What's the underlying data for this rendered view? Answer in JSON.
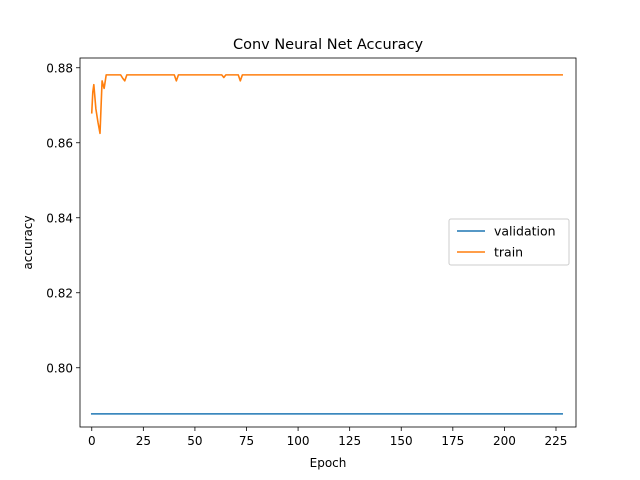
{
  "chart_data": {
    "type": "line",
    "title": "Conv Neural Net Accuracy",
    "xlabel": "Epoch",
    "ylabel": "accuracy",
    "xlim": [
      -5.7,
      234.7
    ],
    "ylim": [
      0.7842,
      0.8826
    ],
    "xticks": [
      0,
      25,
      50,
      75,
      100,
      125,
      150,
      175,
      200,
      225
    ],
    "yticks": [
      0.8,
      0.82,
      0.84,
      0.86,
      0.88
    ],
    "ytick_labels": [
      "0.80",
      "0.82",
      "0.84",
      "0.86",
      "0.88"
    ],
    "grid": false,
    "legend_position": "center-right",
    "series": [
      {
        "name": "validation",
        "color": "#1f77b4",
        "x": [
          0,
          228
        ],
        "y": [
          0.7877,
          0.7877
        ]
      },
      {
        "name": "train",
        "color": "#ff7f0e",
        "x": [
          0,
          0.5,
          1,
          2,
          3,
          4,
          5,
          6,
          7,
          8,
          14,
          15,
          16,
          17,
          40,
          41,
          42,
          43,
          63,
          64,
          65,
          71,
          72,
          73,
          74,
          228
        ],
        "y": [
          0.868,
          0.8735,
          0.8755,
          0.869,
          0.8655,
          0.8625,
          0.8765,
          0.8745,
          0.8781,
          0.8781,
          0.8781,
          0.8772,
          0.8765,
          0.8781,
          0.8781,
          0.8765,
          0.8781,
          0.8781,
          0.8781,
          0.8774,
          0.8781,
          0.8781,
          0.8765,
          0.8781,
          0.8781,
          0.8781
        ]
      }
    ]
  }
}
